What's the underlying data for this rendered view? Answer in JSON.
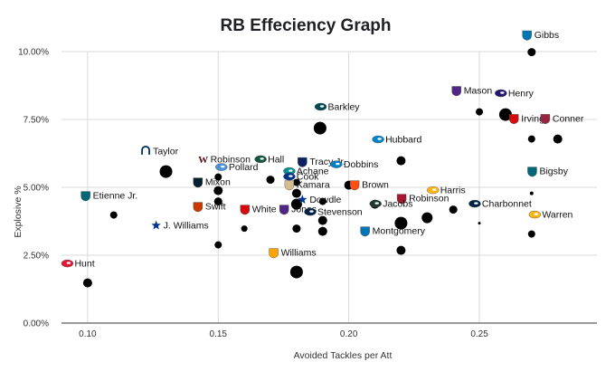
{
  "chart_data": {
    "type": "scatter",
    "title": "RB Effeciency Graph",
    "xlabel": "Avoided Tackles per Att",
    "ylabel": "Explosive %",
    "xlim": [
      0.09,
      0.295
    ],
    "ylim": [
      0.0,
      0.1
    ],
    "x_ticks": [
      0.1,
      0.15,
      0.2,
      0.25
    ],
    "x_tick_labels": [
      "0.10",
      "0.15",
      "0.20",
      "0.25"
    ],
    "y_ticks": [
      0.0,
      0.025,
      0.05,
      0.075,
      0.1
    ],
    "y_tick_labels": [
      "0.00%",
      "2.50%",
      "5.00%",
      "7.50%",
      "10.00%"
    ],
    "grid": true,
    "legend": "none",
    "note": "Point size reflects a third, unlabeled variable.",
    "points": [
      {
        "x": 0.27,
        "y": 0.0998,
        "size": 4.5
      },
      {
        "x": 0.25,
        "y": 0.0778,
        "size": 4
      },
      {
        "x": 0.26,
        "y": 0.0768,
        "size": 7
      },
      {
        "x": 0.27,
        "y": 0.0678,
        "size": 4
      },
      {
        "x": 0.28,
        "y": 0.0678,
        "size": 5
      },
      {
        "x": 0.189,
        "y": 0.0718,
        "size": 7
      },
      {
        "x": 0.22,
        "y": 0.0598,
        "size": 5
      },
      {
        "x": 0.13,
        "y": 0.0558,
        "size": 7
      },
      {
        "x": 0.15,
        "y": 0.0538,
        "size": 4
      },
      {
        "x": 0.15,
        "y": 0.0488,
        "size": 5
      },
      {
        "x": 0.17,
        "y": 0.0528,
        "size": 4.5
      },
      {
        "x": 0.18,
        "y": 0.0518,
        "size": 4
      },
      {
        "x": 0.18,
        "y": 0.0478,
        "size": 5
      },
      {
        "x": 0.2,
        "y": 0.0508,
        "size": 5
      },
      {
        "x": 0.27,
        "y": 0.0478,
        "size": 2
      },
      {
        "x": 0.15,
        "y": 0.0448,
        "size": 4.5
      },
      {
        "x": 0.18,
        "y": 0.0438,
        "size": 6
      },
      {
        "x": 0.21,
        "y": 0.0438,
        "size": 5
      },
      {
        "x": 0.19,
        "y": 0.0448,
        "size": 4
      },
      {
        "x": 0.24,
        "y": 0.0418,
        "size": 4.5
      },
      {
        "x": 0.19,
        "y": 0.0378,
        "size": 5
      },
      {
        "x": 0.22,
        "y": 0.0368,
        "size": 7
      },
      {
        "x": 0.23,
        "y": 0.0388,
        "size": 6
      },
      {
        "x": 0.11,
        "y": 0.0398,
        "size": 4
      },
      {
        "x": 0.25,
        "y": 0.0368,
        "size": 1.5
      },
      {
        "x": 0.16,
        "y": 0.0348,
        "size": 3.5
      },
      {
        "x": 0.18,
        "y": 0.0348,
        "size": 4.5
      },
      {
        "x": 0.19,
        "y": 0.0338,
        "size": 5
      },
      {
        "x": 0.27,
        "y": 0.0328,
        "size": 4
      },
      {
        "x": 0.15,
        "y": 0.0288,
        "size": 4
      },
      {
        "x": 0.22,
        "y": 0.0268,
        "size": 5
      },
      {
        "x": 0.18,
        "y": 0.0188,
        "size": 7
      },
      {
        "x": 0.1,
        "y": 0.0148,
        "size": 5
      }
    ],
    "labels": [
      {
        "text": "Gibbs",
        "x": 0.271,
        "y": 0.105,
        "logo": "lions",
        "color": "#0076B6"
      },
      {
        "text": "Mason",
        "x": 0.244,
        "y": 0.0845,
        "logo": "vikings",
        "color": "#4F2683"
      },
      {
        "text": "Henry",
        "x": 0.261,
        "y": 0.0835,
        "logo": "ravens",
        "color": "#241773"
      },
      {
        "text": "Barkley",
        "x": 0.192,
        "y": 0.0785,
        "logo": "eagles",
        "color": "#004C54"
      },
      {
        "text": "Irving",
        "x": 0.266,
        "y": 0.0742,
        "logo": "buccaneers",
        "color": "#D50A0A"
      },
      {
        "text": "Conner",
        "x": 0.278,
        "y": 0.0742,
        "logo": "cardinals",
        "color": "#97233F"
      },
      {
        "text": "Hubbard",
        "x": 0.214,
        "y": 0.0665,
        "logo": "panthers",
        "color": "#0085CA"
      },
      {
        "text": "Taylor",
        "x": 0.125,
        "y": 0.0622,
        "logo": "colts",
        "color": "#002C5F"
      },
      {
        "text": "Robinson",
        "x": 0.147,
        "y": 0.0592,
        "logo": "commanders",
        "color": "#5A1414"
      },
      {
        "text": "Hall",
        "x": 0.169,
        "y": 0.0592,
        "logo": "jets",
        "color": "#125740"
      },
      {
        "text": "Tracy Jr.",
        "x": 0.185,
        "y": 0.0583,
        "logo": "giants",
        "color": "#0B2265"
      },
      {
        "text": "Dobbins",
        "x": 0.198,
        "y": 0.0573,
        "logo": "chargers",
        "color": "#0080C6"
      },
      {
        "text": "Pollard",
        "x": 0.154,
        "y": 0.0563,
        "logo": "titans",
        "color": "#4B92DB"
      },
      {
        "text": "Achane",
        "x": 0.18,
        "y": 0.0548,
        "logo": "dolphins",
        "color": "#008E97"
      },
      {
        "text": "Cook",
        "x": 0.18,
        "y": 0.0528,
        "logo": "bills",
        "color": "#00338D"
      },
      {
        "text": "Bigsby",
        "x": 0.273,
        "y": 0.0548,
        "logo": "jaguars",
        "color": "#006778"
      },
      {
        "text": "Mixon",
        "x": 0.145,
        "y": 0.0508,
        "logo": "texans",
        "color": "#03202F"
      },
      {
        "text": "Brown",
        "x": 0.205,
        "y": 0.0498,
        "logo": "bengals",
        "color": "#FB4F14"
      },
      {
        "text": "Kamara",
        "x": 0.18,
        "y": 0.0498,
        "logo": "saints",
        "color": "#D3BC8D"
      },
      {
        "text": "Harris",
        "x": 0.235,
        "y": 0.0478,
        "logo": "steelers",
        "color": "#FFB612"
      },
      {
        "text": "Etienne Jr.",
        "x": 0.102,
        "y": 0.0458,
        "logo": "jaguars",
        "color": "#006778"
      },
      {
        "text": "Robinson",
        "x": 0.223,
        "y": 0.0448,
        "logo": "falcons",
        "color": "#A71930"
      },
      {
        "text": "Dowdle",
        "x": 0.185,
        "y": 0.0443,
        "logo": "cowboys",
        "color": "#003594"
      },
      {
        "text": "Jacobs",
        "x": 0.213,
        "y": 0.0428,
        "logo": "packers",
        "color": "#203731"
      },
      {
        "text": "Charbonnet",
        "x": 0.251,
        "y": 0.0428,
        "logo": "seahawks",
        "color": "#002244"
      },
      {
        "text": "Swift",
        "x": 0.145,
        "y": 0.0418,
        "logo": "bears",
        "color": "#C83803"
      },
      {
        "text": "White",
        "x": 0.163,
        "y": 0.0408,
        "logo": "buccaneers",
        "color": "#D50A0A"
      },
      {
        "text": "Jones",
        "x": 0.178,
        "y": 0.0408,
        "logo": "vikings",
        "color": "#4F2683"
      },
      {
        "text": "Stevenson",
        "x": 0.188,
        "y": 0.0398,
        "logo": "patriots",
        "color": "#002244"
      },
      {
        "text": "Warren",
        "x": 0.274,
        "y": 0.0388,
        "logo": "steelers",
        "color": "#FFB612"
      },
      {
        "text": "J. Williams",
        "x": 0.129,
        "y": 0.0348,
        "logo": "cowboys",
        "color": "#003594"
      },
      {
        "text": "Montgomery",
        "x": 0.209,
        "y": 0.0328,
        "logo": "lions",
        "color": "#0076B6"
      },
      {
        "text": "Williams",
        "x": 0.174,
        "y": 0.0248,
        "logo": "rams",
        "color": "#FFA300"
      },
      {
        "text": "Hunt",
        "x": 0.095,
        "y": 0.0208,
        "logo": "chiefs",
        "color": "#E31837"
      }
    ]
  }
}
